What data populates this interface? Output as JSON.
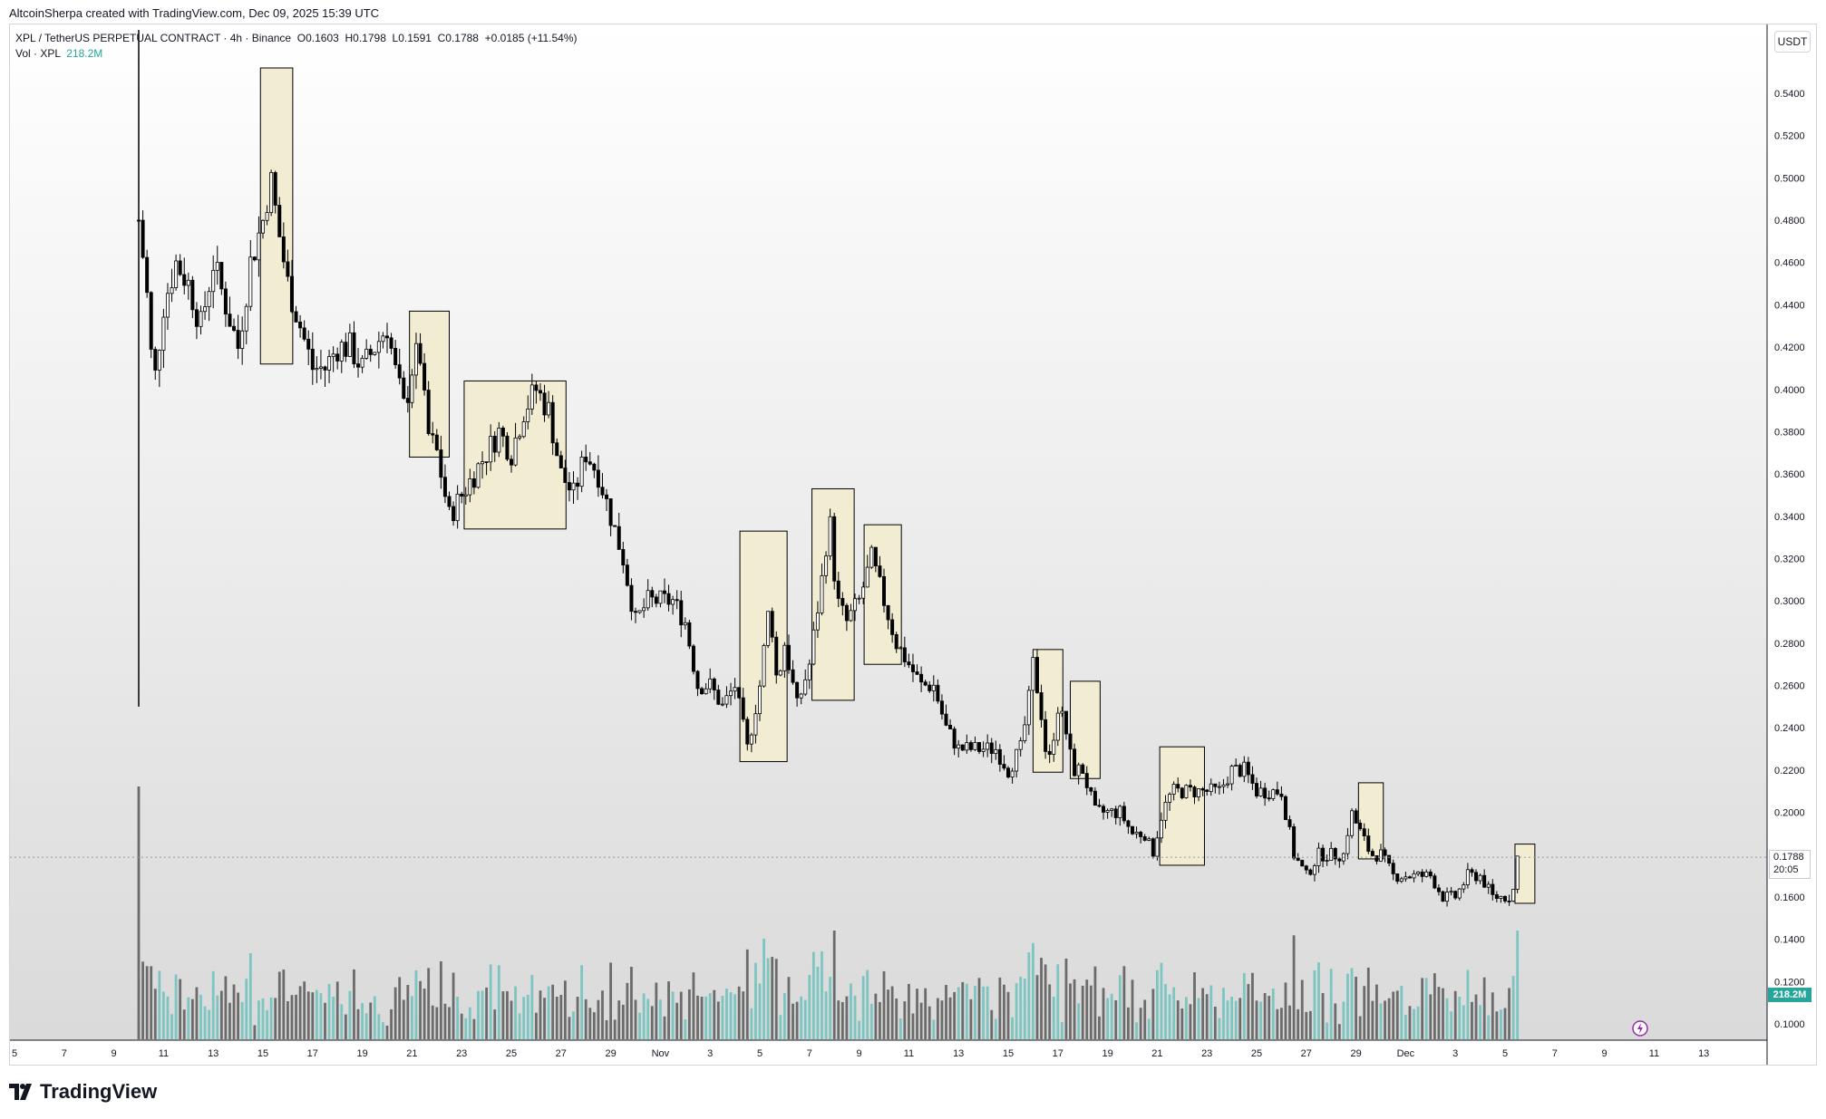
{
  "header": {
    "attribution": "AltcoinSherpa created with TradingView.com, Dec 09, 2025 15:39 UTC"
  },
  "legend": {
    "symbol": "XPL / TetherUS PERPETUAL CONTRACT · 4h · Binance",
    "open_key": "O",
    "open": "0.1603",
    "high_key": "H",
    "high": "0.1798",
    "low_key": "L",
    "low": "0.1591",
    "close_key": "C",
    "close": "0.1788",
    "change": "+0.0185 (+11.54%)",
    "vol_label": "Vol · XPL",
    "vol_value": "218.2M"
  },
  "price_scale": {
    "currency": "USDT",
    "last_price": "0.1788",
    "countdown": "20:05",
    "volume_tag": "218.2M"
  },
  "footer": {
    "brand": "TradingView"
  },
  "colors": {
    "candle": "#000000",
    "highlight_fill": "#f2edd2",
    "highlight_stroke": "#000000",
    "volume_dark": "#6b6b6b",
    "volume_teal": "#7cc5c0",
    "background_top": "#ffffff",
    "background_bottom": "#dcdcdc"
  },
  "icons": {
    "alert": "lightning-alert-icon",
    "logo": "tradingview-logo-icon"
  },
  "chart_data": {
    "type": "candlestick",
    "title": "",
    "xlabel": "",
    "ylabel": "",
    "ylim": [
      0.09,
      0.57
    ],
    "y_ticks": [
      "0.5400",
      "0.5200",
      "0.5000",
      "0.4800",
      "0.4600",
      "0.4400",
      "0.4200",
      "0.4000",
      "0.3800",
      "0.3600",
      "0.3400",
      "0.3200",
      "0.3000",
      "0.2800",
      "0.2600",
      "0.2400",
      "0.2200",
      "0.2000",
      "0.1800",
      "0.1600",
      "0.1400",
      "0.1200",
      "0.1000"
    ],
    "x_ticks": [
      "5",
      "7",
      "9",
      "11",
      "13",
      "15",
      "17",
      "19",
      "21",
      "23",
      "25",
      "27",
      "29",
      "Nov",
      "3",
      "5",
      "7",
      "9",
      "11",
      "13",
      "15",
      "17",
      "19",
      "21",
      "23",
      "25",
      "27",
      "29",
      "Dec",
      "3",
      "5",
      "7",
      "9",
      "11",
      "13"
    ],
    "grid": false,
    "close_path": [
      [
        10.0,
        0.48
      ],
      [
        10.3,
        0.45
      ],
      [
        10.6,
        0.4
      ],
      [
        11.0,
        0.44
      ],
      [
        11.5,
        0.46
      ],
      [
        12.0,
        0.45
      ],
      [
        12.5,
        0.43
      ],
      [
        13.0,
        0.46
      ],
      [
        13.5,
        0.44
      ],
      [
        14.0,
        0.42
      ],
      [
        14.5,
        0.46
      ],
      [
        15.0,
        0.48
      ],
      [
        15.3,
        0.5
      ],
      [
        15.7,
        0.47
      ],
      [
        16.0,
        0.45
      ],
      [
        16.5,
        0.43
      ],
      [
        17.0,
        0.41
      ],
      [
        17.5,
        0.41
      ],
      [
        18.0,
        0.42
      ],
      [
        18.5,
        0.42
      ],
      [
        19.0,
        0.41
      ],
      [
        19.5,
        0.42
      ],
      [
        20.0,
        0.43
      ],
      [
        20.3,
        0.41
      ],
      [
        20.7,
        0.39
      ],
      [
        21.0,
        0.41
      ],
      [
        21.3,
        0.42
      ],
      [
        21.6,
        0.38
      ],
      [
        22.0,
        0.37
      ],
      [
        22.5,
        0.34
      ],
      [
        23.0,
        0.35
      ],
      [
        23.5,
        0.36
      ],
      [
        24.0,
        0.37
      ],
      [
        24.5,
        0.38
      ],
      [
        25.0,
        0.37
      ],
      [
        25.5,
        0.39
      ],
      [
        26.0,
        0.4
      ],
      [
        26.5,
        0.39
      ],
      [
        27.0,
        0.36
      ],
      [
        27.5,
        0.35
      ],
      [
        28.0,
        0.37
      ],
      [
        28.5,
        0.36
      ],
      [
        29.0,
        0.34
      ],
      [
        29.5,
        0.32
      ],
      [
        30.0,
        0.29
      ],
      [
        30.5,
        0.3
      ],
      [
        31.0,
        0.3
      ],
      [
        31.5,
        0.3
      ],
      [
        32.0,
        0.29
      ],
      [
        32.5,
        0.26
      ],
      [
        33.0,
        0.26
      ],
      [
        33.5,
        0.25
      ],
      [
        34.0,
        0.26
      ],
      [
        34.5,
        0.23
      ],
      [
        35.0,
        0.26
      ],
      [
        35.4,
        0.3
      ],
      [
        35.7,
        0.26
      ],
      [
        36.0,
        0.28
      ],
      [
        36.5,
        0.25
      ],
      [
        37.0,
        0.27
      ],
      [
        37.5,
        0.31
      ],
      [
        37.8,
        0.34
      ],
      [
        38.1,
        0.3
      ],
      [
        38.5,
        0.29
      ],
      [
        39.0,
        0.3
      ],
      [
        39.5,
        0.32
      ],
      [
        40.0,
        0.3
      ],
      [
        40.5,
        0.28
      ],
      [
        41.0,
        0.27
      ],
      [
        41.5,
        0.26
      ],
      [
        42.0,
        0.26
      ],
      [
        42.5,
        0.24
      ],
      [
        43.0,
        0.23
      ],
      [
        43.5,
        0.23
      ],
      [
        44.0,
        0.23
      ],
      [
        44.5,
        0.23
      ],
      [
        45.0,
        0.22
      ],
      [
        45.5,
        0.23
      ],
      [
        45.8,
        0.25
      ],
      [
        46.0,
        0.27
      ],
      [
        46.3,
        0.25
      ],
      [
        46.6,
        0.22
      ],
      [
        47.0,
        0.25
      ],
      [
        47.3,
        0.24
      ],
      [
        47.6,
        0.22
      ],
      [
        48.0,
        0.22
      ],
      [
        48.5,
        0.2
      ],
      [
        49.0,
        0.2
      ],
      [
        49.5,
        0.2
      ],
      [
        50.0,
        0.19
      ],
      [
        50.5,
        0.19
      ],
      [
        50.8,
        0.18
      ],
      [
        51.2,
        0.2
      ],
      [
        51.6,
        0.21
      ],
      [
        52.0,
        0.21
      ],
      [
        52.5,
        0.21
      ],
      [
        53.0,
        0.21
      ],
      [
        53.5,
        0.21
      ],
      [
        54.0,
        0.22
      ],
      [
        54.5,
        0.22
      ],
      [
        55.0,
        0.21
      ],
      [
        55.5,
        0.21
      ],
      [
        56.0,
        0.21
      ],
      [
        56.5,
        0.18
      ],
      [
        57.0,
        0.17
      ],
      [
        57.5,
        0.18
      ],
      [
        58.0,
        0.18
      ],
      [
        58.5,
        0.18
      ],
      [
        58.8,
        0.2
      ],
      [
        59.2,
        0.19
      ],
      [
        59.6,
        0.18
      ],
      [
        60.0,
        0.18
      ],
      [
        60.5,
        0.17
      ],
      [
        61.0,
        0.17
      ],
      [
        61.5,
        0.17
      ],
      [
        62.0,
        0.17
      ],
      [
        62.5,
        0.16
      ],
      [
        63.0,
        0.16
      ],
      [
        63.5,
        0.17
      ],
      [
        64.0,
        0.17
      ],
      [
        64.5,
        0.16
      ],
      [
        65.0,
        0.16
      ],
      [
        65.3,
        0.1603
      ],
      [
        65.5,
        0.1788
      ]
    ],
    "spike": {
      "x": 10.0,
      "high": 0.57,
      "low": 0.25
    },
    "highlight_boxes": [
      {
        "x0": 14.9,
        "x1": 16.2,
        "y0": 0.412,
        "y1": 0.552
      },
      {
        "x0": 20.9,
        "x1": 22.5,
        "y0": 0.368,
        "y1": 0.437
      },
      {
        "x0": 23.1,
        "x1": 27.2,
        "y0": 0.334,
        "y1": 0.404
      },
      {
        "x0": 34.2,
        "x1": 36.1,
        "y0": 0.224,
        "y1": 0.333
      },
      {
        "x0": 37.1,
        "x1": 38.8,
        "y0": 0.253,
        "y1": 0.353
      },
      {
        "x0": 39.2,
        "x1": 40.7,
        "y0": 0.27,
        "y1": 0.336
      },
      {
        "x0": 46.0,
        "x1": 47.2,
        "y0": 0.219,
        "y1": 0.277
      },
      {
        "x0": 47.5,
        "x1": 48.7,
        "y0": 0.216,
        "y1": 0.262
      },
      {
        "x0": 51.1,
        "x1": 52.9,
        "y0": 0.175,
        "y1": 0.231
      },
      {
        "x0": 59.1,
        "x1": 60.1,
        "y0": 0.178,
        "y1": 0.214
      },
      {
        "x0": 65.4,
        "x1": 66.2,
        "y0": 0.157,
        "y1": 0.185
      }
    ],
    "volume_note": "Volume histogram along the bottom; last bar 218.2M"
  }
}
